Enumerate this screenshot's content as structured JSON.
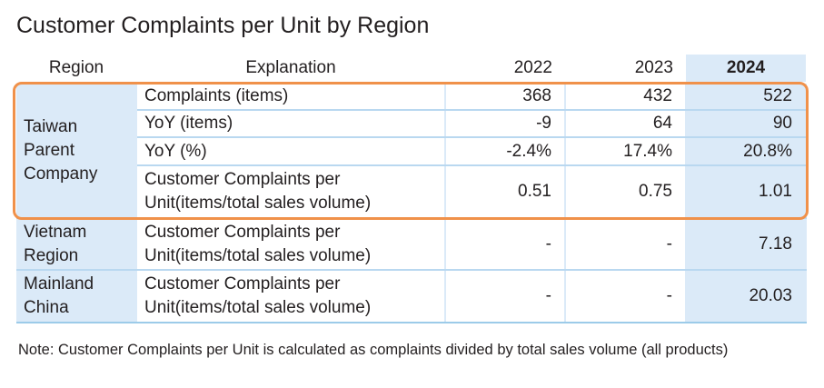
{
  "title": "Customer Complaints per Unit by Region",
  "headers": [
    "Region",
    "Explanation",
    "2022",
    "2023",
    "2024"
  ],
  "taiwan": {
    "region": "Taiwan Parent Company",
    "rows": [
      {
        "label": "Complaints (items)",
        "v": [
          "368",
          "432",
          "522"
        ]
      },
      {
        "label": "YoY (items)",
        "v": [
          "-9",
          "64",
          "90"
        ]
      },
      {
        "label": "YoY (%)",
        "v": [
          "-2.4%",
          "17.4%",
          "20.8%"
        ]
      },
      {
        "label": "Customer Complaints per Unit(items/total sales volume)",
        "v": [
          "0.51",
          "0.75",
          "1.01"
        ]
      }
    ]
  },
  "vietnam": {
    "region": "Vietnam Region",
    "label": "Customer Complaints per Unit(items/total sales volume)",
    "v": [
      "-",
      "-",
      "7.18"
    ]
  },
  "china": {
    "region": "Mainland China",
    "label": "Customer Complaints per Unit(items/total sales volume)",
    "v": [
      "-",
      "-",
      "20.03"
    ]
  },
  "note": "Note: Customer Complaints per Unit is calculated as complaints divided by total sales volume (all products)"
}
